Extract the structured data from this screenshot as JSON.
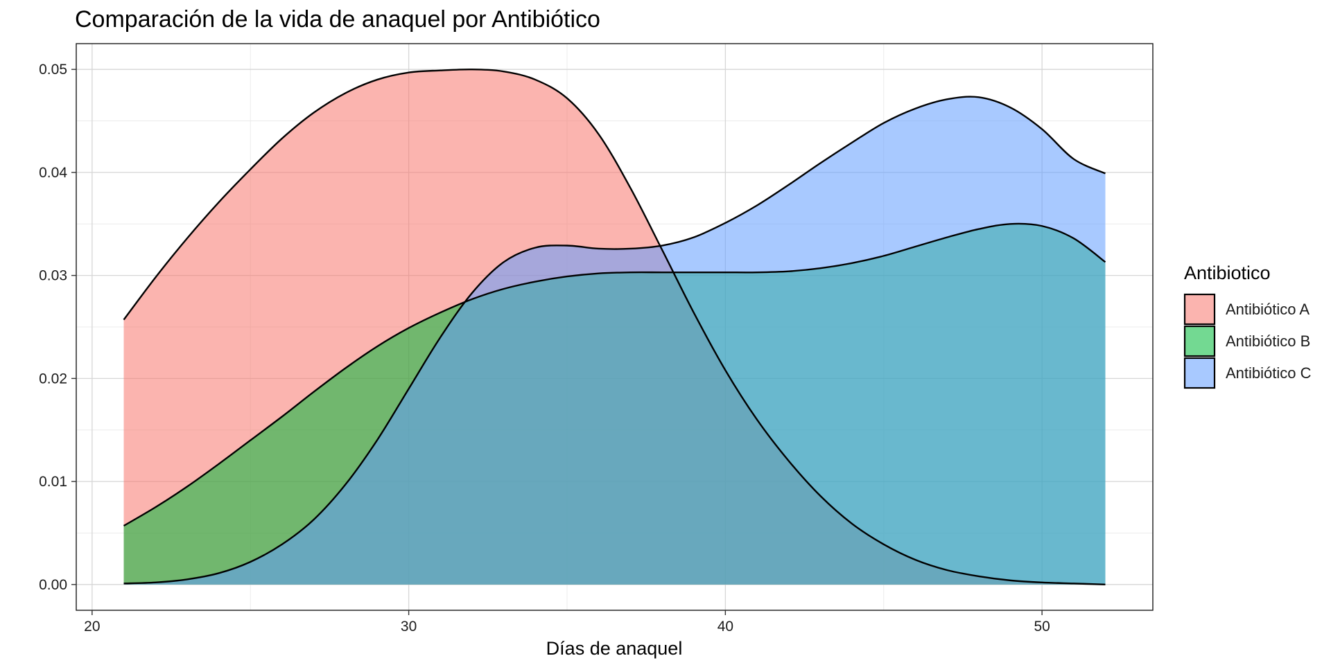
{
  "chart_data": {
    "type": "area",
    "title": "Comparación de la vida de anaquel por Antibiótico",
    "xlabel": "Días de anaquel",
    "ylabel": "",
    "xlim": [
      19.5,
      53.5
    ],
    "ylim": [
      -0.0025,
      0.0525
    ],
    "x_ticks": [
      20,
      30,
      40,
      50
    ],
    "x_tick_labels": [
      "20",
      "30",
      "40",
      "50"
    ],
    "y_ticks": [
      0.0,
      0.01,
      0.02,
      0.03,
      0.04,
      0.05
    ],
    "y_tick_labels": [
      "0.00",
      "0.01",
      "0.02",
      "0.03",
      "0.04",
      "0.05"
    ],
    "grid": true,
    "legend": {
      "title": "Antibiotico",
      "position": "right"
    },
    "x": [
      21,
      22,
      23,
      24,
      25,
      26,
      27,
      28,
      29,
      30,
      31,
      32,
      33,
      34,
      35,
      36,
      37,
      38,
      39,
      40,
      41,
      42,
      43,
      44,
      45,
      46,
      47,
      48,
      49,
      50,
      51,
      52
    ],
    "series": [
      {
        "name": "Antibiótico A",
        "color": "#F8766D",
        "values": [
          0.0257,
          0.0298,
          0.0336,
          0.0371,
          0.0403,
          0.0433,
          0.0458,
          0.0477,
          0.049,
          0.0497,
          0.0499,
          0.05,
          0.0498,
          0.049,
          0.0472,
          0.0437,
          0.0385,
          0.0325,
          0.0264,
          0.0208,
          0.016,
          0.012,
          0.0086,
          0.0059,
          0.0039,
          0.0024,
          0.0014,
          0.0008,
          0.0004,
          0.0002,
          0.0001,
          0.0
        ]
      },
      {
        "name": "Antibiótico B",
        "color": "#00BA38",
        "values": [
          0.0057,
          0.0075,
          0.0095,
          0.0117,
          0.014,
          0.0163,
          0.0187,
          0.021,
          0.0231,
          0.0249,
          0.0264,
          0.0277,
          0.0287,
          0.0294,
          0.0299,
          0.0302,
          0.0303,
          0.0303,
          0.0303,
          0.0303,
          0.0303,
          0.0304,
          0.0307,
          0.0312,
          0.0319,
          0.0328,
          0.0337,
          0.0345,
          0.035,
          0.0348,
          0.0336,
          0.0313
        ]
      },
      {
        "name": "Antibiótico C",
        "color": "#619CFF",
        "values": [
          0.0001,
          0.0002,
          0.0005,
          0.0011,
          0.0022,
          0.0039,
          0.0063,
          0.0097,
          0.014,
          0.019,
          0.024,
          0.0283,
          0.0313,
          0.0327,
          0.0329,
          0.0326,
          0.0326,
          0.0329,
          0.0337,
          0.0351,
          0.0368,
          0.0388,
          0.0409,
          0.0429,
          0.0448,
          0.0462,
          0.0471,
          0.0473,
          0.0463,
          0.0442,
          0.0413,
          0.0399
        ]
      }
    ]
  }
}
